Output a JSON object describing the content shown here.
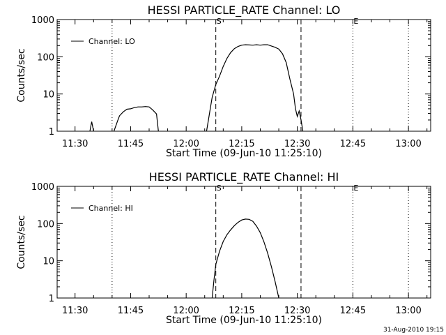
{
  "footer": {
    "timestamp": "31-Aug-2010 19:15"
  },
  "chart_data": [
    {
      "type": "line",
      "title": "HESSI PARTICLE_RATE Channel: LO",
      "xlabel": "Start Time (09-Jun-10 11:25:10)",
      "ylabel": "Counts/sec",
      "xlim": [
        "11:25:10",
        "13:06:00"
      ],
      "ylim": [
        1,
        1000
      ],
      "yscale": "log",
      "x_ticks": [
        "11:30",
        "11:45",
        "12:00",
        "12:15",
        "12:30",
        "12:45",
        "13:00"
      ],
      "y_ticks": [
        {
          "value": 1,
          "label": "1"
        },
        {
          "value": 10,
          "label": "10"
        },
        {
          "value": 100,
          "label": "100"
        },
        {
          "value": 1000,
          "label": "1000"
        }
      ],
      "legend": {
        "label": "Channel: LO",
        "position": "top-left"
      },
      "vlines": [
        {
          "time": "11:40",
          "style": "dotted",
          "label": ""
        },
        {
          "time": "12:08",
          "style": "dashed",
          "label": "S"
        },
        {
          "time": "12:31",
          "style": "dashed",
          "label": ""
        },
        {
          "time": "12:45",
          "style": "dotted",
          "label": "E"
        },
        {
          "time": "13:00",
          "style": "dotted",
          "label": ""
        }
      ],
      "segments": [
        [
          [
            "11:34:00",
            1
          ],
          [
            "11:34:30",
            1.8
          ],
          [
            "11:35:00",
            1
          ]
        ],
        [
          [
            "11:40:30",
            1
          ],
          [
            "11:41:30",
            1.9
          ],
          [
            "11:42:00",
            2.6
          ],
          [
            "11:43:00",
            3.3
          ],
          [
            "11:44:00",
            3.9
          ],
          [
            "11:45:00",
            4.0
          ],
          [
            "11:46:00",
            4.3
          ],
          [
            "11:47:00",
            4.5
          ],
          [
            "11:48:00",
            4.5
          ],
          [
            "11:49:00",
            4.6
          ],
          [
            "11:50:00",
            4.5
          ],
          [
            "11:51:00",
            3.7
          ],
          [
            "11:52:00",
            2.9
          ],
          [
            "11:52:30",
            1
          ]
        ],
        [
          [
            "12:05:30",
            1
          ],
          [
            "12:06:00",
            2
          ],
          [
            "12:06:30",
            4
          ],
          [
            "12:07:00",
            8
          ],
          [
            "12:07:30",
            12
          ],
          [
            "12:08:00",
            18
          ],
          [
            "12:09:00",
            30
          ],
          [
            "12:10:00",
            55
          ],
          [
            "12:11:00",
            90
          ],
          [
            "12:12:00",
            130
          ],
          [
            "12:13:00",
            165
          ],
          [
            "12:14:00",
            190
          ],
          [
            "12:15:00",
            205
          ],
          [
            "12:16:00",
            210
          ],
          [
            "12:17:00",
            208
          ],
          [
            "12:18:00",
            205
          ],
          [
            "12:19:00",
            210
          ],
          [
            "12:20:00",
            205
          ],
          [
            "12:21:00",
            210
          ],
          [
            "12:22:00",
            210
          ],
          [
            "12:23:00",
            195
          ],
          [
            "12:24:00",
            180
          ],
          [
            "12:25:00",
            160
          ],
          [
            "12:26:00",
            120
          ],
          [
            "12:27:00",
            70
          ],
          [
            "12:28:00",
            25
          ],
          [
            "12:29:00",
            10
          ],
          [
            "12:29:30",
            4
          ],
          [
            "12:30:00",
            2.5
          ],
          [
            "12:30:30",
            3.5
          ],
          [
            "12:31:00",
            2
          ],
          [
            "12:31:30",
            1
          ]
        ]
      ]
    },
    {
      "type": "line",
      "title": "HESSI PARTICLE_RATE Channel: HI",
      "xlabel": "Start Time (09-Jun-10 11:25:10)",
      "ylabel": "Counts/sec",
      "xlim": [
        "11:25:10",
        "13:06:00"
      ],
      "ylim": [
        1,
        1000
      ],
      "yscale": "log",
      "x_ticks": [
        "11:30",
        "11:45",
        "12:00",
        "12:15",
        "12:30",
        "12:45",
        "13:00"
      ],
      "y_ticks": [
        {
          "value": 1,
          "label": "1"
        },
        {
          "value": 10,
          "label": "10"
        },
        {
          "value": 100,
          "label": "100"
        },
        {
          "value": 1000,
          "label": "1000"
        }
      ],
      "legend": {
        "label": "Channel: HI",
        "position": "top-left"
      },
      "vlines": [
        {
          "time": "11:40",
          "style": "dotted",
          "label": ""
        },
        {
          "time": "12:08",
          "style": "dashed",
          "label": "S"
        },
        {
          "time": "12:31",
          "style": "dashed",
          "label": ""
        },
        {
          "time": "12:45",
          "style": "dotted",
          "label": "E"
        },
        {
          "time": "13:00",
          "style": "dotted",
          "label": ""
        }
      ],
      "segments": [
        [
          [
            "12:07:00",
            1
          ],
          [
            "12:07:30",
            3
          ],
          [
            "12:08:00",
            8
          ],
          [
            "12:09:00",
            18
          ],
          [
            "12:10:00",
            33
          ],
          [
            "12:11:00",
            50
          ],
          [
            "12:12:00",
            68
          ],
          [
            "12:13:00",
            88
          ],
          [
            "12:14:00",
            108
          ],
          [
            "12:15:00",
            125
          ],
          [
            "12:16:00",
            132
          ],
          [
            "12:17:00",
            130
          ],
          [
            "12:18:00",
            115
          ],
          [
            "12:19:00",
            85
          ],
          [
            "12:20:00",
            57
          ],
          [
            "12:21:00",
            32
          ],
          [
            "12:22:00",
            16
          ],
          [
            "12:23:00",
            7
          ],
          [
            "12:24:00",
            2.8
          ],
          [
            "12:25:00",
            1
          ]
        ]
      ]
    }
  ]
}
